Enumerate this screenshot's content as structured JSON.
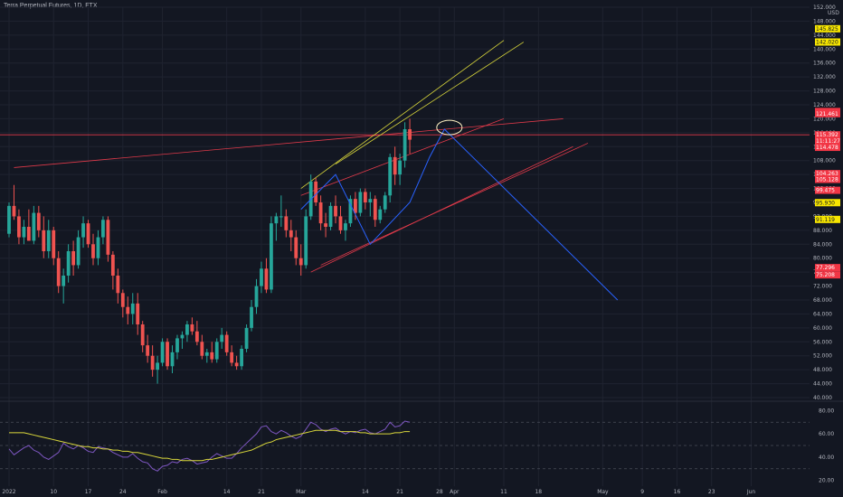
{
  "header": {
    "title": "Terra Perpetual Futures, 1D, FTX"
  },
  "chart_data": {
    "type": "candlestick",
    "currency": "USD",
    "price_axis": {
      "ylim": [
        40,
        152
      ],
      "ticks": [
        40,
        44,
        48,
        52,
        56,
        60,
        64,
        68,
        72,
        76,
        80,
        84,
        88,
        92,
        96,
        100,
        104,
        108,
        112,
        116,
        120,
        124,
        128,
        132,
        136,
        140,
        144,
        148,
        152
      ]
    },
    "price_tick_labels": [
      "40.000",
      "44.000",
      "48.000",
      "52.000",
      "56.000",
      "60.000",
      "64.000",
      "68.000",
      "72.000",
      "76.000",
      "80.000",
      "84.000",
      "88.000",
      "92.000",
      "96.000",
      "100.000",
      "104.000",
      "108.000",
      "112.000",
      "116.000",
      "120.000",
      "124.000",
      "128.000",
      "132.000",
      "136.000",
      "140.000",
      "144.000",
      "148.000",
      "152.000"
    ],
    "rsi_axis": {
      "ylim": [
        15,
        85
      ],
      "ticks": [
        20,
        40,
        60,
        80
      ],
      "tick_labels": [
        "20.00",
        "40.00",
        "60.00",
        "80.00"
      ],
      "levels": [
        70,
        50,
        30
      ]
    },
    "time_axis": {
      "days": 152,
      "labels": [
        {
          "day": 0,
          "text": "2022"
        },
        {
          "day": 9,
          "text": "10"
        },
        {
          "day": 16,
          "text": "17"
        },
        {
          "day": 23,
          "text": "24"
        },
        {
          "day": 31,
          "text": "Feb"
        },
        {
          "day": 44,
          "text": "14"
        },
        {
          "day": 51,
          "text": "21"
        },
        {
          "day": 59,
          "text": "Mar"
        },
        {
          "day": 72,
          "text": "14"
        },
        {
          "day": 79,
          "text": "21"
        },
        {
          "day": 87,
          "text": "28"
        },
        {
          "day": 90,
          "text": "Apr"
        },
        {
          "day": 100,
          "text": "11"
        },
        {
          "day": 107,
          "text": "18"
        },
        {
          "day": 120,
          "text": "May"
        },
        {
          "day": 128,
          "text": "9"
        },
        {
          "day": 135,
          "text": "16"
        },
        {
          "day": 142,
          "text": "23"
        },
        {
          "day": 150,
          "text": "Jun"
        }
      ]
    },
    "candles": [
      [
        87,
        96,
        86,
        95
      ],
      [
        95,
        101,
        91,
        92
      ],
      [
        92,
        94,
        84,
        86
      ],
      [
        86,
        91,
        84,
        89
      ],
      [
        89,
        94,
        85,
        85
      ],
      [
        85,
        95,
        84,
        93
      ],
      [
        93,
        95,
        86,
        88
      ],
      [
        88,
        92,
        80,
        82
      ],
      [
        82,
        91,
        80,
        88
      ],
      [
        88,
        89,
        78,
        80
      ],
      [
        80,
        82,
        70,
        72
      ],
      [
        72,
        77,
        67,
        75
      ],
      [
        75,
        84,
        73,
        82
      ],
      [
        82,
        85,
        75,
        78
      ],
      [
        78,
        88,
        77,
        86
      ],
      [
        86,
        92,
        83,
        90
      ],
      [
        90,
        91,
        83,
        84
      ],
      [
        84,
        87,
        78,
        80
      ],
      [
        80,
        88,
        78,
        86
      ],
      [
        86,
        92,
        84,
        91
      ],
      [
        91,
        92,
        79,
        81
      ],
      [
        81,
        82,
        71,
        75
      ],
      [
        75,
        77,
        67,
        70
      ],
      [
        70,
        71,
        63,
        66
      ],
      [
        66,
        69,
        61,
        64
      ],
      [
        64,
        70,
        61,
        67
      ],
      [
        67,
        70,
        58,
        61
      ],
      [
        61,
        62,
        53,
        55
      ],
      [
        55,
        58,
        50,
        52
      ],
      [
        52,
        55,
        46,
        48
      ],
      [
        48,
        52,
        44,
        50
      ],
      [
        50,
        57,
        49,
        56
      ],
      [
        56,
        57,
        48,
        49
      ],
      [
        49,
        55,
        47,
        53
      ],
      [
        53,
        58,
        51,
        57
      ],
      [
        57,
        59,
        54,
        58
      ],
      [
        58,
        62,
        56,
        61
      ],
      [
        61,
        63,
        58,
        59
      ],
      [
        59,
        62,
        55,
        56
      ],
      [
        56,
        58,
        51,
        52
      ],
      [
        52,
        54,
        50,
        53
      ],
      [
        53,
        56,
        50,
        51
      ],
      [
        51,
        57,
        50,
        56
      ],
      [
        56,
        60,
        54,
        58
      ],
      [
        58,
        59,
        52,
        53
      ],
      [
        53,
        55,
        49,
        50
      ],
      [
        50,
        52,
        48,
        49
      ],
      [
        49,
        55,
        48,
        54
      ],
      [
        54,
        61,
        53,
        60
      ],
      [
        60,
        68,
        59,
        66
      ],
      [
        66,
        74,
        64,
        72
      ],
      [
        72,
        79,
        70,
        77
      ],
      [
        77,
        80,
        70,
        71
      ],
      [
        71,
        92,
        70,
        90
      ],
      [
        90,
        93,
        85,
        92
      ],
      [
        92,
        98,
        89,
        92
      ],
      [
        92,
        94,
        86,
        88
      ],
      [
        88,
        91,
        82,
        86
      ],
      [
        86,
        88,
        78,
        80
      ],
      [
        80,
        84,
        75,
        78
      ],
      [
        78,
        94,
        77,
        92
      ],
      [
        92,
        104,
        91,
        102
      ],
      [
        102,
        103,
        95,
        96
      ],
      [
        96,
        98,
        88,
        90
      ],
      [
        90,
        93,
        86,
        89
      ],
      [
        89,
        96,
        88,
        95
      ],
      [
        95,
        98,
        90,
        92
      ],
      [
        92,
        95,
        87,
        88
      ],
      [
        88,
        91,
        85,
        90
      ],
      [
        90,
        98,
        89,
        97
      ],
      [
        97,
        99,
        91,
        93
      ],
      [
        93,
        100,
        92,
        99
      ],
      [
        99,
        100,
        94,
        96
      ],
      [
        96,
        99,
        92,
        97
      ],
      [
        97,
        98,
        89,
        91
      ],
      [
        91,
        95,
        90,
        94
      ],
      [
        94,
        99,
        93,
        98
      ],
      [
        98,
        110,
        96,
        109
      ],
      [
        109,
        112,
        101,
        104
      ],
      [
        104,
        110,
        101,
        108
      ],
      [
        108,
        119,
        106,
        117
      ],
      [
        117,
        120,
        110,
        114
      ]
    ],
    "candle_start_day": 0,
    "annotations": {
      "yellow_channel": {
        "upper": [
          [
            59,
            100
          ],
          [
            100,
            142.5
          ]
        ],
        "lower": [
          [
            66,
            107
          ],
          [
            104,
            142
          ]
        ]
      },
      "red_channel": {
        "upper": [
          [
            59,
            98
          ],
          [
            100,
            120
          ]
        ],
        "lower": [
          [
            61,
            76
          ],
          [
            114,
            112
          ]
        ],
        "lower2": [
          [
            63,
            78
          ],
          [
            117,
            113
          ]
        ]
      },
      "red_long_line": {
        "from": [
          1,
          106
        ],
        "to": [
          112,
          120
        ]
      },
      "horizontal_line": {
        "price": 115.39
      },
      "blue_zigzag": [
        [
          59,
          94
        ],
        [
          66,
          104
        ],
        [
          73,
          84
        ],
        [
          81,
          96
        ],
        [
          85,
          109
        ],
        [
          88,
          117
        ],
        [
          123,
          68
        ]
      ],
      "circle": {
        "day": 89,
        "price": 117.5
      }
    },
    "price_badges": [
      {
        "text": "145.825",
        "price": 145.825,
        "bg": "#f7e600",
        "fg": "#131722"
      },
      {
        "text": "142.020",
        "price": 142.02,
        "bg": "#f7e600",
        "fg": "#131722"
      },
      {
        "text": "122.089",
        "price": 122.089,
        "bg": "#f23645",
        "fg": "#ffffff"
      },
      {
        "text": "121.654",
        "price": 121.654,
        "bg": "#f23645",
        "fg": "#ffffff"
      },
      {
        "text": "121.461",
        "price": 121.461,
        "bg": "#f23645",
        "fg": "#ffffff"
      },
      {
        "text": "115.392",
        "price": 115.392,
        "bg": "#f23645",
        "fg": "#ffffff"
      },
      {
        "text": "11:11:27",
        "price": 113.6,
        "bg": "#f23645",
        "fg": "#ffffff"
      },
      {
        "text": "114.478",
        "price": 111.8,
        "bg": "#f23645",
        "fg": "#ffffff"
      },
      {
        "text": "104.263",
        "price": 104.263,
        "bg": "#f23645",
        "fg": "#ffffff"
      },
      {
        "text": "105.128",
        "price": 102.6,
        "bg": "#f23645",
        "fg": "#ffffff"
      },
      {
        "text": "99.475",
        "price": 99.475,
        "bg": "#f23645",
        "fg": "#ffffff"
      },
      {
        "text": "95.930",
        "price": 95.93,
        "bg": "#f7e600",
        "fg": "#131722"
      },
      {
        "text": "91.119",
        "price": 91.119,
        "bg": "#f7e600",
        "fg": "#131722"
      },
      {
        "text": "77.296",
        "price": 77.296,
        "bg": "#f23645",
        "fg": "#ffffff"
      },
      {
        "text": "75.208",
        "price": 75.208,
        "bg": "#f23645",
        "fg": "#ffffff"
      }
    ],
    "rsi": [
      47,
      42,
      45,
      48,
      50,
      46,
      44,
      40,
      38,
      41,
      44,
      52,
      49,
      47,
      50,
      48,
      45,
      44,
      49,
      48,
      47,
      44,
      42,
      40,
      40,
      43,
      39,
      36,
      35,
      30,
      28,
      32,
      33,
      36,
      35,
      38,
      39,
      37,
      34,
      35,
      36,
      40,
      43,
      41,
      39,
      39,
      43,
      48,
      52,
      56,
      60,
      66,
      67,
      62,
      60,
      63,
      61,
      58,
      56,
      58,
      64,
      70,
      68,
      64,
      62,
      64,
      65,
      62,
      60,
      62,
      61,
      63,
      64,
      61,
      60,
      62,
      64,
      70,
      66,
      67,
      71,
      70
    ],
    "rsi_ma": [
      61,
      61,
      61,
      61,
      60,
      59,
      58,
      57,
      56,
      55,
      54,
      53,
      52,
      51,
      50,
      49,
      49,
      48,
      48,
      47,
      47,
      46,
      46,
      45,
      45,
      44,
      44,
      43,
      42,
      41,
      40,
      39,
      39,
      38,
      38,
      37,
      37,
      37,
      37,
      37,
      38,
      38,
      39,
      40,
      41,
      42,
      43,
      44,
      45,
      46,
      48,
      50,
      52,
      53,
      55,
      56,
      57,
      58,
      59,
      60,
      61,
      62,
      63,
      63,
      63,
      63,
      63,
      62,
      62,
      62,
      62,
      61,
      61,
      60,
      60,
      60,
      60,
      60,
      61,
      61,
      62,
      62
    ]
  },
  "colors": {
    "background": "#131722",
    "grid": "#1f2330",
    "candle_up": "#26a69a",
    "candle_down": "#ef5350",
    "yellow_line": "#d9d73b",
    "red_line": "#e03a4a",
    "blue_line": "#2962ff",
    "rsi_line": "#7e57c2",
    "rsi_ma_line": "#d9d73b"
  }
}
